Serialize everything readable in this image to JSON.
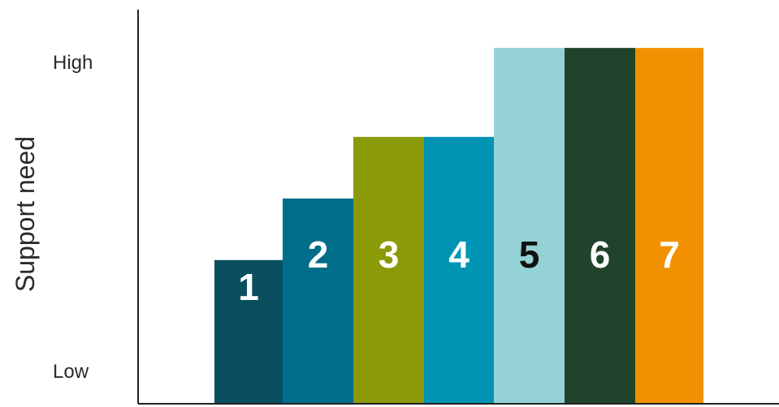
{
  "chart_data": {
    "type": "bar",
    "title": "",
    "xlabel": "",
    "ylabel": "Support need",
    "y_tick_labels": {
      "low": "Low",
      "high": "High"
    },
    "ylim": [
      0,
      100
    ],
    "grid": false,
    "legend": "none",
    "categories": [
      "1",
      "2",
      "3",
      "4",
      "5",
      "6",
      "7"
    ],
    "values": [
      42,
      60,
      78,
      78,
      104,
      104,
      104
    ],
    "colors": [
      "#0a4f60",
      "#006d8a",
      "#8b9a08",
      "#0094b4",
      "#94d2d6",
      "#20432b",
      "#f29100"
    ],
    "label_colors": [
      "#ffffff",
      "#ffffff",
      "#ffffff",
      "#ffffff",
      "#111111",
      "#ffffff",
      "#ffffff"
    ]
  }
}
